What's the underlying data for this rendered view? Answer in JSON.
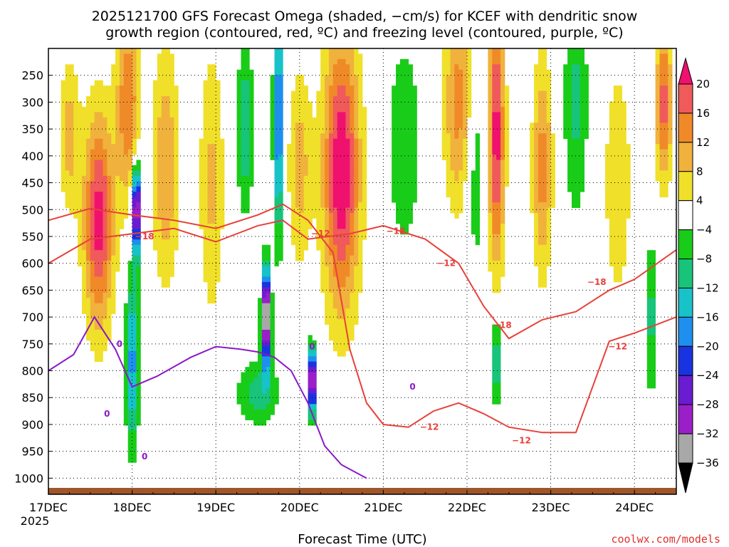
{
  "chart_data": {
    "type": "heatmap",
    "title_line1": "2025121700 GFS Forecast Omega (shaded, −cm/s) for KCEF with dendritic snow",
    "title_line2": "growth region (contoured, red, ºC) and freezing level (contoured, purple, ºC)",
    "xlabel": "Forecast Time (UTC)",
    "ylabel": "",
    "credit": "coolwx.com/models",
    "x_start_label": "17DEC",
    "x_year_label": "2025",
    "x_ticks": [
      {
        "day": 0,
        "label": "17DEC"
      },
      {
        "day": 1,
        "label": "18DEC"
      },
      {
        "day": 2,
        "label": "19DEC"
      },
      {
        "day": 3,
        "label": "20DEC"
      },
      {
        "day": 4,
        "label": "21DEC"
      },
      {
        "day": 5,
        "label": "22DEC"
      },
      {
        "day": 6,
        "label": "23DEC"
      },
      {
        "day": 7,
        "label": "24DEC"
      }
    ],
    "xlim_days": [
      0,
      7.5
    ],
    "y_ticks": [
      {
        "p": 250,
        "label": "250"
      },
      {
        "p": 300,
        "label": "300"
      },
      {
        "p": 350,
        "label": "350"
      },
      {
        "p": 400,
        "label": "400"
      },
      {
        "p": 450,
        "label": "450"
      },
      {
        "p": 500,
        "label": "500"
      },
      {
        "p": 550,
        "label": "550"
      },
      {
        "p": 600,
        "label": "600"
      },
      {
        "p": 650,
        "label": "650"
      },
      {
        "p": 700,
        "label": "700"
      },
      {
        "p": 750,
        "label": "750"
      },
      {
        "p": 800,
        "label": "800"
      },
      {
        "p": 850,
        "label": "850"
      },
      {
        "p": 900,
        "label": "900"
      },
      {
        "p": 950,
        "label": "950"
      },
      {
        "p": 1000,
        "label": "1000"
      }
    ],
    "ylim_hpa": [
      200,
      1030
    ],
    "grid": true,
    "colorbar": {
      "levels": [
        -36,
        -32,
        -28,
        -24,
        -20,
        -16,
        -12,
        -8,
        -4,
        4,
        8,
        12,
        16,
        20
      ],
      "labels": [
        "20",
        "16",
        "12",
        "8",
        "4",
        "−4",
        "−8",
        "−12",
        "−16",
        "−20",
        "−24",
        "−28",
        "−32",
        "−36"
      ],
      "colors": [
        "#000000",
        "#a8a8a8",
        "#9a1fc9",
        "#6a1cd0",
        "#1a33e0",
        "#1e8fef",
        "#17c3c8",
        "#18c47a",
        "#19cc19",
        "#ffffff",
        "#f0e02a",
        "#f0b23c",
        "#f08a28",
        "#f05a5a",
        "#f0106e"
      ]
    },
    "omega_features": [
      {
        "t": 0.6,
        "p": 520,
        "wt": 0.18,
        "hp": 200,
        "v": 22
      },
      {
        "t": 0.25,
        "p": 360,
        "wt": 0.12,
        "hp": 140,
        "v": 10
      },
      {
        "t": 0.95,
        "p": 300,
        "wt": 0.14,
        "hp": 180,
        "v": 16
      },
      {
        "t": 1.4,
        "p": 420,
        "wt": 0.16,
        "hp": 220,
        "v": 12
      },
      {
        "t": 1.05,
        "p": 500,
        "wt": 0.05,
        "hp": 80,
        "v": -40
      },
      {
        "t": 1.0,
        "p": 780,
        "wt": 0.08,
        "hp": 160,
        "v": -18
      },
      {
        "t": 1.95,
        "p": 450,
        "wt": 0.15,
        "hp": 250,
        "v": 9
      },
      {
        "t": 2.35,
        "p": 350,
        "wt": 0.1,
        "hp": 150,
        "v": -12
      },
      {
        "t": 2.75,
        "p": 330,
        "wt": 0.06,
        "hp": 220,
        "v": -22
      },
      {
        "t": 2.6,
        "p": 700,
        "wt": 0.05,
        "hp": 90,
        "v": -44
      },
      {
        "t": 2.5,
        "p": 840,
        "wt": 0.25,
        "hp": 60,
        "v": -10
      },
      {
        "t": 3.15,
        "p": 820,
        "wt": 0.05,
        "hp": 60,
        "v": -38
      },
      {
        "t": 3.0,
        "p": 420,
        "wt": 0.14,
        "hp": 180,
        "v": 10
      },
      {
        "t": 3.5,
        "p": 430,
        "wt": 0.22,
        "hp": 260,
        "v": 24
      },
      {
        "t": 4.25,
        "p": 380,
        "wt": 0.2,
        "hp": 200,
        "v": -8
      },
      {
        "t": 4.9,
        "p": 300,
        "wt": 0.18,
        "hp": 200,
        "v": 14
      },
      {
        "t": 5.35,
        "p": 360,
        "wt": 0.1,
        "hp": 250,
        "v": 22
      },
      {
        "t": 5.35,
        "p": 780,
        "wt": 0.05,
        "hp": 90,
        "v": -14
      },
      {
        "t": 5.1,
        "p": 420,
        "wt": 0.12,
        "hp": 200,
        "v": -8
      },
      {
        "t": 5.9,
        "p": 420,
        "wt": 0.12,
        "hp": 200,
        "v": 14
      },
      {
        "t": 6.3,
        "p": 300,
        "wt": 0.15,
        "hp": 220,
        "v": -9
      },
      {
        "t": 6.8,
        "p": 450,
        "wt": 0.18,
        "hp": 250,
        "v": 7
      },
      {
        "t": 7.35,
        "p": 300,
        "wt": 0.1,
        "hp": 150,
        "v": 18
      },
      {
        "t": 7.2,
        "p": 700,
        "wt": 0.06,
        "hp": 150,
        "v": -10
      }
    ],
    "contour_labels": [
      {
        "t": 1.15,
        "p": 550,
        "text": "−18"
      },
      {
        "t": 3.25,
        "p": 545,
        "text": "−12"
      },
      {
        "t": 4.15,
        "p": 540,
        "text": "−18"
      },
      {
        "t": 4.75,
        "p": 600,
        "text": "−12"
      },
      {
        "t": 5.42,
        "p": 715,
        "text": "−18"
      },
      {
        "t": 6.55,
        "p": 635,
        "text": "−18"
      },
      {
        "t": 6.8,
        "p": 755,
        "text": "−12"
      },
      {
        "t": 4.55,
        "p": 905,
        "text": "−12"
      },
      {
        "t": 5.65,
        "p": 930,
        "text": "−12"
      },
      {
        "t": 0.85,
        "p": 750,
        "text": "0"
      },
      {
        "t": 0.7,
        "p": 880,
        "text": "0"
      },
      {
        "t": 1.15,
        "p": 960,
        "text": "0"
      },
      {
        "t": 3.15,
        "p": 755,
        "text": "0"
      },
      {
        "t": 4.35,
        "p": 830,
        "text": "0"
      }
    ],
    "dgz_top_minus18": [
      [
        0,
        600
      ],
      [
        0.5,
        555
      ],
      [
        1.0,
        545
      ],
      [
        1.5,
        535
      ],
      [
        2.0,
        560
      ],
      [
        2.5,
        530
      ],
      [
        2.8,
        520
      ],
      [
        3.1,
        555
      ],
      [
        3.6,
        545
      ],
      [
        4.0,
        530
      ],
      [
        4.5,
        555
      ],
      [
        4.9,
        600
      ],
      [
        5.2,
        680
      ],
      [
        5.5,
        740
      ],
      [
        5.9,
        705
      ],
      [
        6.3,
        690
      ],
      [
        6.7,
        650
      ],
      [
        7.0,
        630
      ],
      [
        7.5,
        575
      ]
    ],
    "dgz_bottom_minus12": [
      [
        0,
        520
      ],
      [
        0.5,
        498
      ],
      [
        1.0,
        510
      ],
      [
        1.5,
        520
      ],
      [
        2.0,
        535
      ],
      [
        2.5,
        510
      ],
      [
        2.8,
        490
      ],
      [
        3.1,
        520
      ],
      [
        3.4,
        580
      ],
      [
        3.6,
        760
      ],
      [
        3.8,
        860
      ],
      [
        4.0,
        900
      ],
      [
        4.3,
        905
      ],
      [
        4.6,
        875
      ],
      [
        4.9,
        860
      ],
      [
        5.2,
        880
      ],
      [
        5.5,
        905
      ],
      [
        5.9,
        915
      ],
      [
        6.3,
        915
      ],
      [
        6.7,
        745
      ],
      [
        7.0,
        730
      ],
      [
        7.5,
        700
      ]
    ],
    "freezing_level_0": [
      [
        0,
        800
      ],
      [
        0.3,
        770
      ],
      [
        0.55,
        700
      ],
      [
        0.8,
        760
      ],
      [
        1.0,
        830
      ],
      [
        1.3,
        810
      ],
      [
        1.7,
        775
      ],
      [
        2.0,
        755
      ],
      [
        2.3,
        760
      ],
      [
        2.5,
        765
      ],
      [
        2.7,
        775
      ],
      [
        2.9,
        800
      ],
      [
        3.1,
        860
      ],
      [
        3.3,
        940
      ],
      [
        3.5,
        975
      ],
      [
        3.8,
        1000
      ]
    ]
  }
}
